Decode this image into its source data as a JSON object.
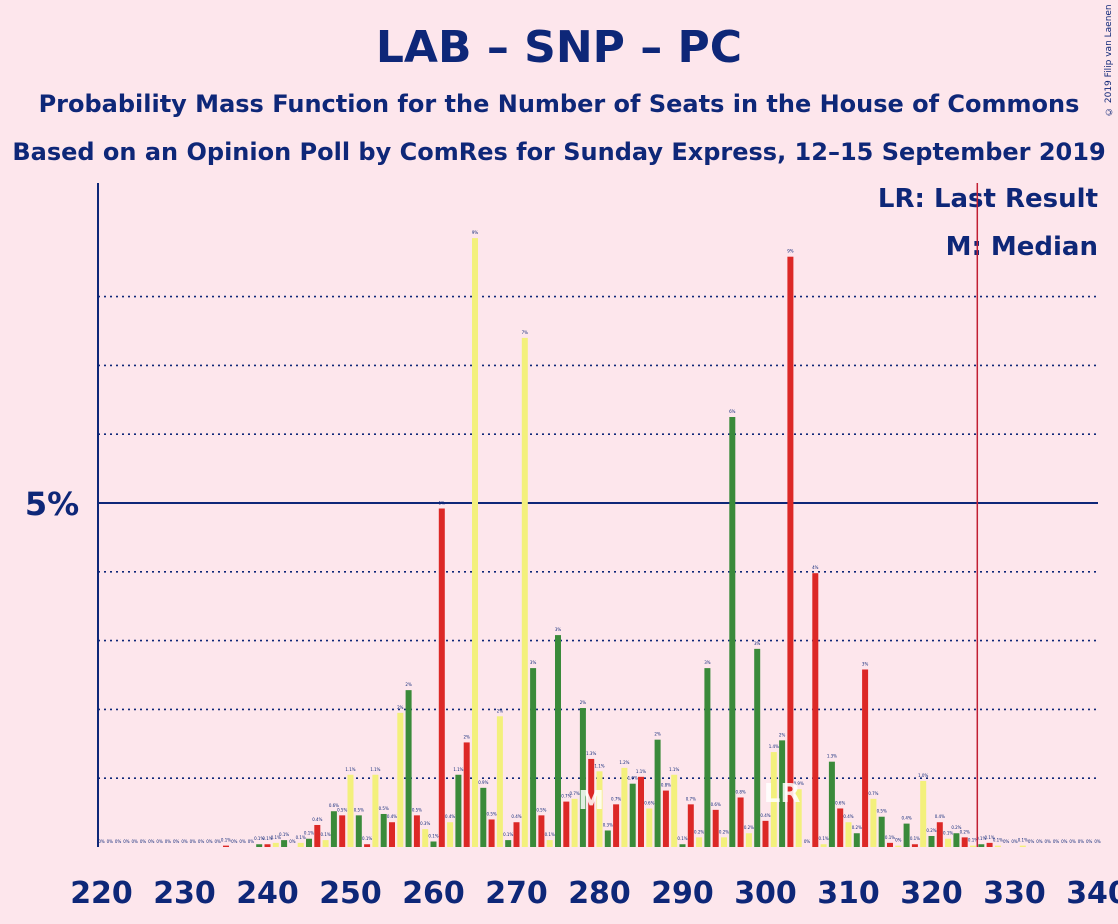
{
  "title": "LAB – SNP – PC",
  "subtitle": "Probability Mass Function for the Number of Seats in the House of Commons",
  "subtitle2": "Based on an Opinion Poll by ComRes for Sunday Express, 12–15 September 2019",
  "copyright": "© 2019 Filip van Laenen",
  "legend": {
    "lr": "LR: Last Result",
    "m": "M: Median"
  },
  "markers": {
    "lr_label": "LR",
    "median_label": "M"
  },
  "colors": {
    "background": "#fde6ec",
    "text": "#0e2778",
    "red": "#dc2826",
    "yellow": "#f3f07c",
    "green": "#3a8a3a",
    "lr_line": "#c21f33"
  },
  "chart_data": {
    "type": "bar",
    "xlim": [
      220,
      340
    ],
    "ylim": [
      0,
      9.5
    ],
    "ylabel_tick": "5%",
    "x_ticks": [
      "220",
      "230",
      "240",
      "250",
      "260",
      "270",
      "280",
      "290",
      "300",
      "310",
      "320",
      "330",
      "340"
    ],
    "gridlines": [
      1,
      2,
      3,
      4,
      6,
      7,
      8
    ],
    "major_gridline": 5,
    "last_result": 326,
    "median": 279,
    "values": [
      [
        220,
        "r",
        0,
        "0%"
      ],
      [
        221,
        "r",
        0,
        "0%"
      ],
      [
        222,
        "r",
        0,
        "0%"
      ],
      [
        223,
        "r",
        0,
        "0%"
      ],
      [
        224,
        "r",
        0,
        "0%"
      ],
      [
        225,
        "r",
        0,
        "0%"
      ],
      [
        226,
        "r",
        0,
        "0%"
      ],
      [
        227,
        "r",
        0,
        "0%"
      ],
      [
        228,
        "r",
        0,
        "0%"
      ],
      [
        229,
        "r",
        0,
        "0%"
      ],
      [
        230,
        "r",
        0,
        "0%"
      ],
      [
        231,
        "r",
        0,
        "0%"
      ],
      [
        232,
        "r",
        0,
        "0%"
      ],
      [
        233,
        "r",
        0,
        "0%"
      ],
      [
        234,
        "r",
        0,
        "0%"
      ],
      [
        235,
        "r",
        0.02,
        "0.1%"
      ],
      [
        236,
        "r",
        0,
        "0%"
      ],
      [
        237,
        "r",
        0,
        "0%"
      ],
      [
        238,
        "r",
        0,
        "0%"
      ],
      [
        239,
        "g",
        0.04,
        "0.1%"
      ],
      [
        240,
        "r",
        0.04,
        "0.1%"
      ],
      [
        241,
        "y",
        0.06,
        "0.1%"
      ],
      [
        242,
        "g",
        0.1,
        "0.1%"
      ],
      [
        243,
        "r",
        0,
        "0%"
      ],
      [
        244,
        "y",
        0.06,
        "0.1%"
      ],
      [
        245,
        "g",
        0.12,
        "0.1%"
      ],
      [
        246,
        "r",
        0.32,
        "0.4%"
      ],
      [
        247,
        "y",
        0.1,
        "0.1%"
      ],
      [
        248,
        "g",
        0.52,
        "0.6%"
      ],
      [
        249,
        "r",
        0.46,
        "0.5%"
      ],
      [
        250,
        "y",
        1.05,
        "1.1%"
      ],
      [
        251,
        "g",
        0.46,
        "0.5%"
      ],
      [
        252,
        "r",
        0.04,
        "0.1%"
      ],
      [
        253,
        "y",
        1.05,
        "1.1%"
      ],
      [
        254,
        "g",
        0.48,
        "0.5%"
      ],
      [
        255,
        "r",
        0.36,
        "0.4%"
      ],
      [
        256,
        "y",
        1.95,
        "2%"
      ],
      [
        257,
        "g",
        2.28,
        "2%"
      ],
      [
        258,
        "r",
        0.46,
        "0.5%"
      ],
      [
        259,
        "y",
        0.26,
        "0.3%"
      ],
      [
        260,
        "g",
        0.08,
        "0.1%"
      ],
      [
        261,
        "r",
        4.92,
        "5%"
      ],
      [
        262,
        "y",
        0.36,
        "0.4%"
      ],
      [
        263,
        "g",
        1.05,
        "1.1%"
      ],
      [
        264,
        "r",
        1.52,
        "2%"
      ],
      [
        265,
        "y",
        8.85,
        "9%"
      ],
      [
        266,
        "g",
        0.86,
        "0.9%"
      ],
      [
        267,
        "r",
        0.4,
        "0.5%"
      ],
      [
        268,
        "y",
        1.9,
        "2%"
      ],
      [
        269,
        "g",
        0.1,
        "0.1%"
      ],
      [
        270,
        "r",
        0.36,
        "0.4%"
      ],
      [
        271,
        "y",
        7.4,
        "7%"
      ],
      [
        272,
        "g",
        2.6,
        "3%"
      ],
      [
        273,
        "r",
        0.46,
        "0.5%"
      ],
      [
        274,
        "y",
        0.1,
        "0.1%"
      ],
      [
        275,
        "g",
        3.08,
        "3%"
      ],
      [
        276,
        "r",
        0.66,
        "0.7%"
      ],
      [
        277,
        "y",
        0.7,
        "0.7%"
      ],
      [
        278,
        "g",
        2.02,
        "2%"
      ],
      [
        279,
        "r",
        1.28,
        "1.3%"
      ],
      [
        280,
        "y",
        1.1,
        "1.1%"
      ],
      [
        281,
        "g",
        0.24,
        "0.3%"
      ],
      [
        282,
        "r",
        0.62,
        "0.7%"
      ],
      [
        283,
        "y",
        1.15,
        "1.2%"
      ],
      [
        284,
        "g",
        0.92,
        "1.0%"
      ],
      [
        285,
        "r",
        1.02,
        "1.1%"
      ],
      [
        286,
        "y",
        0.56,
        "0.6%"
      ],
      [
        287,
        "g",
        1.56,
        "2%"
      ],
      [
        288,
        "r",
        0.82,
        "0.8%"
      ],
      [
        289,
        "y",
        1.05,
        "1.1%"
      ],
      [
        290,
        "g",
        0.04,
        "0.1%"
      ],
      [
        291,
        "r",
        0.62,
        "0.7%"
      ],
      [
        292,
        "y",
        0.14,
        "0.2%"
      ],
      [
        293,
        "g",
        2.6,
        "3%"
      ],
      [
        294,
        "r",
        0.54,
        "0.6%"
      ],
      [
        295,
        "y",
        0.14,
        "0.2%"
      ],
      [
        296,
        "g",
        6.25,
        "6%"
      ],
      [
        297,
        "r",
        0.72,
        "0.8%"
      ],
      [
        298,
        "y",
        0.2,
        "0.2%"
      ],
      [
        299,
        "g",
        2.88,
        "3%"
      ],
      [
        300,
        "r",
        0.38,
        "0.4%"
      ],
      [
        301,
        "y",
        1.38,
        "1.4%"
      ],
      [
        302,
        "g",
        1.55,
        "2%"
      ],
      [
        303,
        "r",
        8.58,
        "9%"
      ],
      [
        304,
        "y",
        0.84,
        "0.9%"
      ],
      [
        305,
        "g",
        0,
        "0%"
      ],
      [
        306,
        "r",
        3.98,
        "4%"
      ],
      [
        307,
        "y",
        0.04,
        "0.1%"
      ],
      [
        308,
        "g",
        1.24,
        "1.3%"
      ],
      [
        309,
        "r",
        0.56,
        "0.6%"
      ],
      [
        310,
        "y",
        0.36,
        "0.4%"
      ],
      [
        311,
        "g",
        0.2,
        "0.2%"
      ],
      [
        312,
        "r",
        2.58,
        "3%"
      ],
      [
        313,
        "y",
        0.7,
        "0.7%"
      ],
      [
        314,
        "g",
        0.44,
        "0.5%"
      ],
      [
        315,
        "r",
        0.06,
        "0.1%"
      ],
      [
        316,
        "y",
        0.02,
        "0%"
      ],
      [
        317,
        "g",
        0.34,
        "0.4%"
      ],
      [
        318,
        "r",
        0.04,
        "0.1%"
      ],
      [
        319,
        "y",
        0.96,
        "1.0%"
      ],
      [
        320,
        "g",
        0.16,
        "0.2%"
      ],
      [
        321,
        "r",
        0.36,
        "0.4%"
      ],
      [
        322,
        "y",
        0.12,
        "0.1%"
      ],
      [
        323,
        "g",
        0.2,
        "0.2%"
      ],
      [
        324,
        "r",
        0.14,
        "0.2%"
      ],
      [
        325,
        "y",
        0.02,
        "0.1%"
      ],
      [
        326,
        "g",
        0.04,
        "0.1%"
      ],
      [
        327,
        "r",
        0.06,
        "0.1%"
      ],
      [
        328,
        "y",
        0.02,
        "0.1%"
      ],
      [
        329,
        "g",
        0,
        "0%"
      ],
      [
        330,
        "r",
        0,
        "0%"
      ],
      [
        331,
        "y",
        0.02,
        "0.1%"
      ],
      [
        332,
        "g",
        0,
        "0%"
      ],
      [
        333,
        "r",
        0,
        "0%"
      ],
      [
        334,
        "y",
        0,
        "0%"
      ],
      [
        335,
        "g",
        0,
        "0%"
      ],
      [
        336,
        "r",
        0,
        "0%"
      ],
      [
        337,
        "y",
        0,
        "0%"
      ],
      [
        338,
        "g",
        0,
        "0%"
      ],
      [
        339,
        "r",
        0,
        "0%"
      ],
      [
        340,
        "y",
        0,
        "0%"
      ]
    ]
  }
}
